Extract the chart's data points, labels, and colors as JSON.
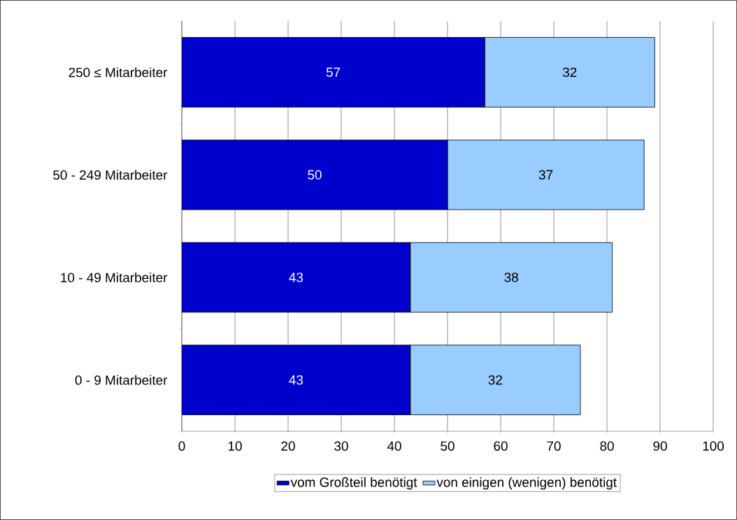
{
  "chart_data": {
    "type": "bar",
    "orientation": "horizontal",
    "stacked": true,
    "categories": [
      "250 ≤ Mitarbeiter",
      "50 - 249 Mitarbeiter",
      "10 - 49 Mitarbeiter",
      "0 - 9 Mitarbeiter"
    ],
    "series": [
      {
        "name": "vom Großteil benötigt",
        "color": "#0000cc",
        "values": [
          57,
          50,
          43,
          43
        ]
      },
      {
        "name": "von einigen (wenigen) benötigt",
        "color": "#99ccff",
        "values": [
          32,
          37,
          38,
          32
        ]
      }
    ],
    "xlim": [
      0,
      100
    ],
    "xticks": [
      0,
      10,
      20,
      30,
      40,
      50,
      60,
      70,
      80,
      90,
      100
    ],
    "grid": "x",
    "legend": "bottom",
    "data_labels": true
  }
}
